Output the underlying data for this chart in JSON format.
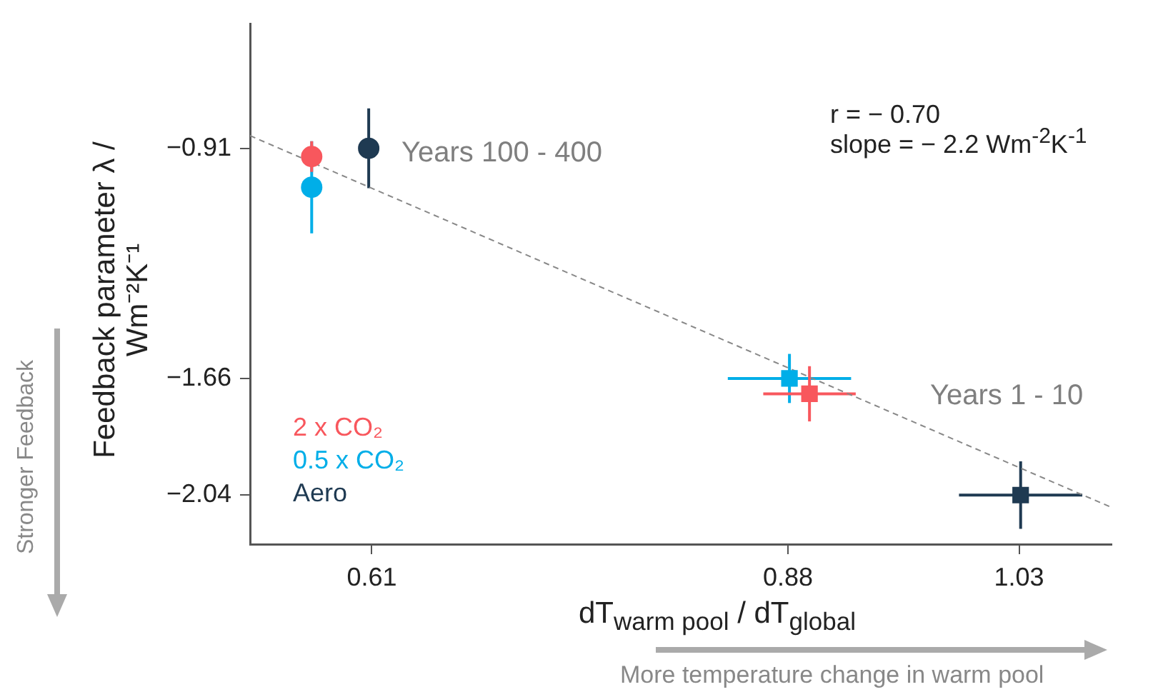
{
  "chart_data": {
    "type": "scatter",
    "xlabel": "dT$_{warm pool}$ / dT$_{global}$",
    "ylabel": "Feedback parameter λ /\nWm⁻²K⁻¹",
    "xlim": [
      0.531,
      1.09
    ],
    "xticks": [
      0.61,
      0.88,
      1.03
    ],
    "ylim": [
      -2.2,
      -0.505
    ],
    "yticks": [
      -2.04,
      -1.66,
      -0.91
    ],
    "grid": false,
    "legend": "bottom left",
    "series": [
      {
        "name": "2 x CO₂",
        "color": "#f8575d",
        "marker": "circle",
        "x": [
          0.571
        ],
        "values": [
          -0.937
        ],
        "errors": [
          0.05
        ]
      },
      {
        "name": "0.5 x CO₂",
        "color": "#00aee8",
        "marker": "circle",
        "x": [
          0.571
        ],
        "values": [
          -1.037
        ],
        "errors": [
          0.15
        ]
      },
      {
        "name": "Aero",
        "color": "#1f3a52",
        "marker": "circle",
        "x": [
          0.608
        ],
        "values": [
          -0.91
        ],
        "errors": [
          0.13
        ]
      },
      {
        "color": "#f8575d",
        "marker": "square",
        "x": [
          0.894
        ],
        "values": [
          -1.71
        ],
        "errors": [
          0.09
        ],
        "xerrors": [
          0.03
        ]
      },
      {
        "color": "#00aee8",
        "marker": "square",
        "x": [
          0.881
        ],
        "values": [
          -1.66
        ],
        "errors": [
          0.08
        ],
        "xerrors": [
          0.04
        ]
      },
      {
        "color": "#1f3a52",
        "marker": "square",
        "x": [
          1.031
        ],
        "values": [
          -2.04
        ],
        "errors": [
          0.11
        ],
        "xerrors": [
          0.04
        ]
      },
      {
        "type": "line",
        "color": "#888888",
        "marker": "none",
        "line_style": "dashed",
        "x": [
          0.531,
          1.089
        ],
        "values": [
          -0.869,
          -2.078
        ]
      }
    ],
    "annotations": [
      "r = − 0.70",
      "slope = − 2.2 Wm$^{-2}$K$^{-1}$",
      "Years 100 - 400",
      "Years 1 - 10",
      "Stronger Feedback",
      "More temperature change in warm pool"
    ]
  }
}
